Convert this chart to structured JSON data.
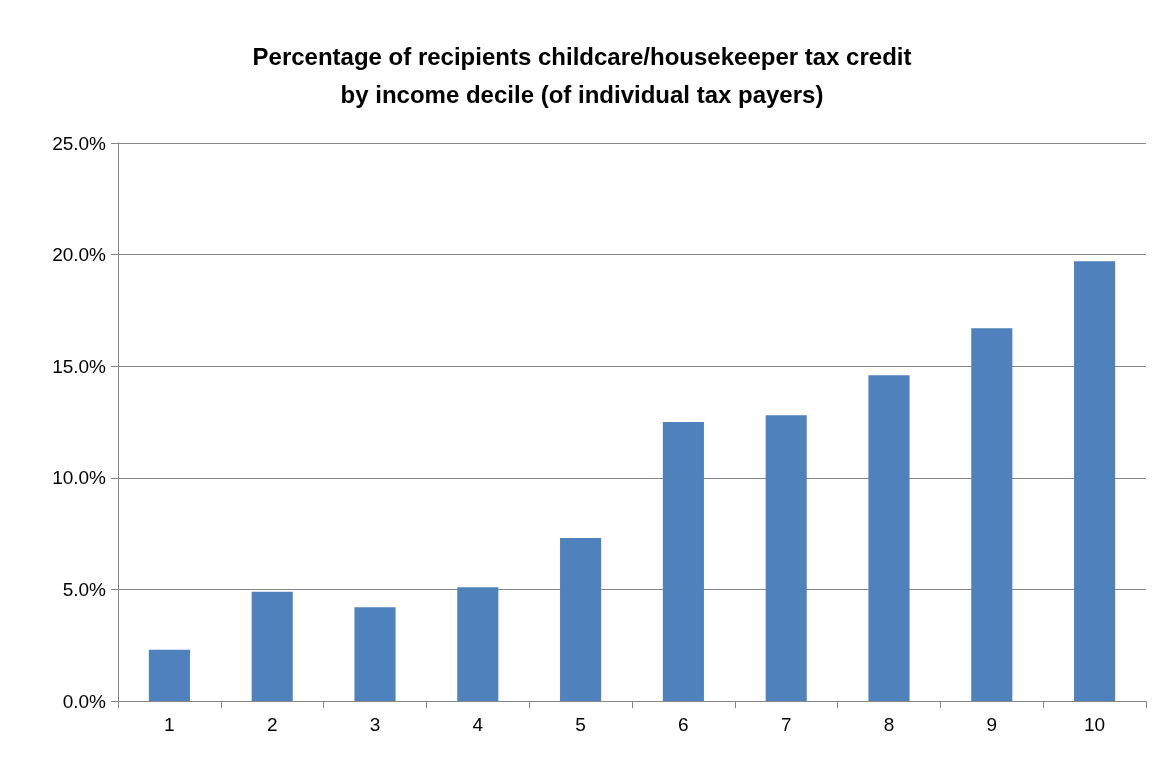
{
  "chart_data": {
    "type": "bar",
    "title": "Percentage of recipients childcare/housekeeper tax credit\nby income decile (of individual tax payers)",
    "categories": [
      "1",
      "2",
      "3",
      "4",
      "5",
      "6",
      "7",
      "8",
      "9",
      "10"
    ],
    "values": [
      2.3,
      4.9,
      4.2,
      5.1,
      7.3,
      12.5,
      12.8,
      14.6,
      16.7,
      19.7
    ],
    "color": "#4f81bd",
    "ylim": [
      0,
      25
    ],
    "yticks": [
      {
        "value": 0,
        "label": "0.0%"
      },
      {
        "value": 5,
        "label": "5.0%"
      },
      {
        "value": 10,
        "label": "10.0%"
      },
      {
        "value": 15,
        "label": "15.0%"
      },
      {
        "value": 20,
        "label": "20.0%"
      },
      {
        "value": 25,
        "label": "25.0%"
      }
    ],
    "grid": "y"
  }
}
